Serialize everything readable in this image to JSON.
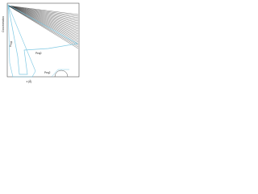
{
  "diagram": {
    "y_axis_label": "Concentration",
    "x_axis_label": "x (Å)",
    "regions": [
      "Peq0",
      "Peq1",
      "Peq2"
    ]
  }
}
